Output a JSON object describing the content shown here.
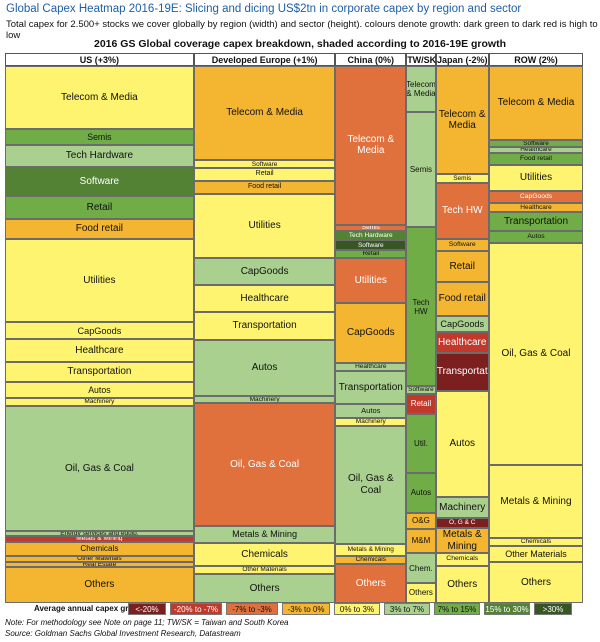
{
  "header": {
    "title": "Global Capex Heatmap 2016-19E: Slicing and dicing US$2tn in corporate capex by region and sector",
    "subtitle": "Total capex for 2.500+ stocks we cover globally by region (width) and sector (height). colours denote growth: dark green to dark red is high to low"
  },
  "chart_data": {
    "type": "heatmap",
    "title": "2016 GS Global coverage capex breakdown, shaded according to 2016-19E growth",
    "legend_label": "Average annual capex growth:",
    "growth_scale": [
      {
        "label": "<-20%",
        "color": "#7b1f1f"
      },
      {
        "label": "-20% to -7%",
        "color": "#c0392b"
      },
      {
        "label": "-7% to -3%",
        "color": "#e0703c"
      },
      {
        "label": "-3% to 0%",
        "color": "#f4b531"
      },
      {
        "label": "0% to 3%",
        "color": "#fff46f"
      },
      {
        "label": "3% to 7%",
        "color": "#a9d08e"
      },
      {
        "label": "7% to 15%",
        "color": "#70ad47"
      },
      {
        "label": "15% to 30%",
        "color": "#548235"
      },
      {
        "label": ">30%",
        "color": "#375623"
      }
    ],
    "regions": [
      {
        "name": "US (+3%)",
        "width_share": 0.32,
        "sectors": [
          {
            "label": "Telecom & Media",
            "share": 0.0995,
            "bucket": 4
          },
          {
            "label": "Semis",
            "share": 0.0251,
            "bucket": 6
          },
          {
            "label": "Tech Hardware",
            "share": 0.0339,
            "bucket": 5
          },
          {
            "label": "Software",
            "share": 0.0468,
            "bucket": 7
          },
          {
            "label": "Retail",
            "share": 0.0357,
            "bucket": 6
          },
          {
            "label": "Food retail",
            "share": 0.0318,
            "bucket": 3
          },
          {
            "label": "Utilities",
            "share": 0.1313,
            "bucket": 4
          },
          {
            "label": "CapGoods",
            "share": 0.0263,
            "bucket": 4
          },
          {
            "label": "Healthcare",
            "share": 0.0355,
            "bucket": 4
          },
          {
            "label": "Transportation",
            "share": 0.0318,
            "bucket": 4
          },
          {
            "label": "Autos",
            "share": 0.0251,
            "bucket": 4
          },
          {
            "label": "Machinery",
            "share": 0.0131,
            "bucket": 4
          },
          {
            "label": "Oil, Gas & Coal",
            "share": 0.1966,
            "bucket": 5
          },
          {
            "label": "Energy services and equip.",
            "share": 0.0085,
            "bucket": 5
          },
          {
            "label": "Metals & Mining",
            "share": 0.0085,
            "bucket": 1
          },
          {
            "label": "Chemicals",
            "share": 0.0234,
            "bucket": 3
          },
          {
            "label": "Other Materials",
            "share": 0.0085,
            "bucket": 3
          },
          {
            "label": "Real Estate",
            "share": 0.0085,
            "bucket": 3
          },
          {
            "label": "Others",
            "share": 0.0563,
            "bucket": 3
          }
        ]
      },
      {
        "name": "Developed Europe (+1%)",
        "width_share": 0.24,
        "sectors": [
          {
            "label": "Telecom & Media",
            "share": 0.1601,
            "bucket": 3
          },
          {
            "label": "Software",
            "share": 0.0131,
            "bucket": 4
          },
          {
            "label": "Retail",
            "share": 0.0217,
            "bucket": 4
          },
          {
            "label": "Food retail",
            "share": 0.0217,
            "bucket": 3
          },
          {
            "label": "Utilities",
            "share": 0.1096,
            "bucket": 4
          },
          {
            "label": "CapGoods",
            "share": 0.0455,
            "bucket": 5
          },
          {
            "label": "Healthcare",
            "share": 0.0455,
            "bucket": 4
          },
          {
            "label": "Transportation",
            "share": 0.0473,
            "bucket": 4
          },
          {
            "label": "Autos",
            "share": 0.0946,
            "bucket": 5
          },
          {
            "label": "Machinery",
            "share": 0.0131,
            "bucket": 5
          },
          {
            "label": "Oil, Gas & Coal",
            "share": 0.2083,
            "bucket": 2
          },
          {
            "label": "Metals & Mining",
            "share": 0.0282,
            "bucket": 5
          },
          {
            "label": "Chemicals",
            "share": 0.04,
            "bucket": 4
          },
          {
            "label": "Other Materials",
            "share": 0.0131,
            "bucket": 4
          },
          {
            "label": "Others",
            "share": 0.0491,
            "bucket": 5
          }
        ]
      },
      {
        "name": "China (0%)",
        "width_share": 0.12,
        "sectors": [
          {
            "label": "Telecom & Media",
            "share": 0.295,
            "bucket": 2
          },
          {
            "label": "Semis",
            "share": 0.0109,
            "bucket": 2
          },
          {
            "label": "Tech Hardware",
            "share": 0.0182,
            "bucket": 7
          },
          {
            "label": "Software",
            "share": 0.0182,
            "bucket": 8
          },
          {
            "label": "Retail",
            "share": 0.0146,
            "bucket": 6
          },
          {
            "label": "Utilities",
            "share": 0.0837,
            "bucket": 2
          },
          {
            "label": "CapGoods",
            "share": 0.111,
            "bucket": 3
          },
          {
            "label": "Healthcare",
            "share": 0.0146,
            "bucket": 5
          },
          {
            "label": "Transportation",
            "share": 0.0619,
            "bucket": 5
          },
          {
            "label": "Autos",
            "share": 0.0255,
            "bucket": 5
          },
          {
            "label": "Machinery",
            "share": 0.0146,
            "bucket": 4
          },
          {
            "label": "Oil, Gas & Coal",
            "share": 0.2202,
            "bucket": 5
          },
          {
            "label": "Metals & Mining",
            "share": 0.0218,
            "bucket": 4
          },
          {
            "label": "Chemicals",
            "share": 0.0146,
            "bucket": 3
          },
          {
            "label": "Others",
            "share": 0.0728,
            "bucket": 2
          }
        ]
      },
      {
        "name": "TW/SK",
        "width_share": 0.05,
        "sectors": [
          {
            "label": "Telecom & Media",
            "share": 0.0837,
            "bucket": 5
          },
          {
            "label": "Semis",
            "share": 0.2129,
            "bucket": 5
          },
          {
            "label": "Tech HW",
            "share": 0.2911,
            "bucket": 6
          },
          {
            "label": "Software",
            "share": 0.0146,
            "bucket": 5
          },
          {
            "label": "Retail",
            "share": 0.0364,
            "bucket": 1
          },
          {
            "label": "Util.",
            "share": 0.1092,
            "bucket": 6
          },
          {
            "label": "Autos",
            "share": 0.0728,
            "bucket": 6
          },
          {
            "label": "O&G",
            "share": 0.0291,
            "bucket": 3
          },
          {
            "label": "M&M",
            "share": 0.0455,
            "bucket": 3
          },
          {
            "label": "Chem.",
            "share": 0.0546,
            "bucket": 5
          },
          {
            "label": "Others",
            "share": 0.0364,
            "bucket": 4
          }
        ]
      },
      {
        "name": "Japan (-2%)",
        "width_share": 0.09,
        "sectors": [
          {
            "label": "Telecom & Media",
            "share": 0.1892,
            "bucket": 3
          },
          {
            "label": "Semis",
            "share": 0.0146,
            "bucket": 4
          },
          {
            "label": "Tech HW",
            "share": 0.0983,
            "bucket": 2
          },
          {
            "label": "Software",
            "share": 0.0218,
            "bucket": 3
          },
          {
            "label": "Retail",
            "share": 0.0546,
            "bucket": 3
          },
          {
            "label": "Food retail",
            "share": 0.0582,
            "bucket": 3
          },
          {
            "label": "CapGoods",
            "share": 0.0291,
            "bucket": 5
          },
          {
            "label": "Healthcare",
            "share": 0.0364,
            "bucket": 1
          },
          {
            "label": "Transportat",
            "share": 0.0655,
            "bucket": 0
          },
          {
            "label": "Autos",
            "share": 0.1856,
            "bucket": 4
          },
          {
            "label": "Machinery",
            "share": 0.0364,
            "bucket": 5
          },
          {
            "label": "O, G & C",
            "share": 0.0182,
            "bucket": 0
          },
          {
            "label": "Metals & Mining",
            "share": 0.0437,
            "bucket": 3
          },
          {
            "label": "Chemicals",
            "share": 0.0218,
            "bucket": 4
          },
          {
            "label": "Others",
            "share": 0.0655,
            "bucket": 4
          }
        ]
      },
      {
        "name": "ROW (2%)",
        "width_share": 0.16,
        "sectors": [
          {
            "label": "Telecom & Media",
            "share": 0.131,
            "bucket": 3
          },
          {
            "label": "Software",
            "share": 0.0128,
            "bucket": 6
          },
          {
            "label": "Healthcare",
            "share": 0.0109,
            "bucket": 5
          },
          {
            "label": "Food retail",
            "share": 0.0218,
            "bucket": 6
          },
          {
            "label": "Utilities",
            "share": 0.0455,
            "bucket": 4
          },
          {
            "label": "CapGoods",
            "share": 0.0218,
            "bucket": 2
          },
          {
            "label": "Healthcare",
            "share": 0.0146,
            "bucket": 3
          },
          {
            "label": "Transportation",
            "share": 0.0346,
            "bucket": 6
          },
          {
            "label": "Autos",
            "share": 0.0218,
            "bucket": 6
          },
          {
            "label": "Oil, Gas & Coal",
            "share": 0.393,
            "bucket": 4
          },
          {
            "label": "Metals & Mining",
            "share": 0.131,
            "bucket": 4
          },
          {
            "label": "Chemicals",
            "share": 0.0128,
            "bucket": 4
          },
          {
            "label": "Other Materials",
            "share": 0.0291,
            "bucket": 4
          },
          {
            "label": "Others",
            "share": 0.0728,
            "bucket": 4
          }
        ]
      }
    ]
  },
  "footer": {
    "note": "Note: For methodology see Note on page 11; TW/SK = Taiwan and South Korea",
    "source": "Source: Goldman Sachs Global Investment Research, Datastream"
  }
}
